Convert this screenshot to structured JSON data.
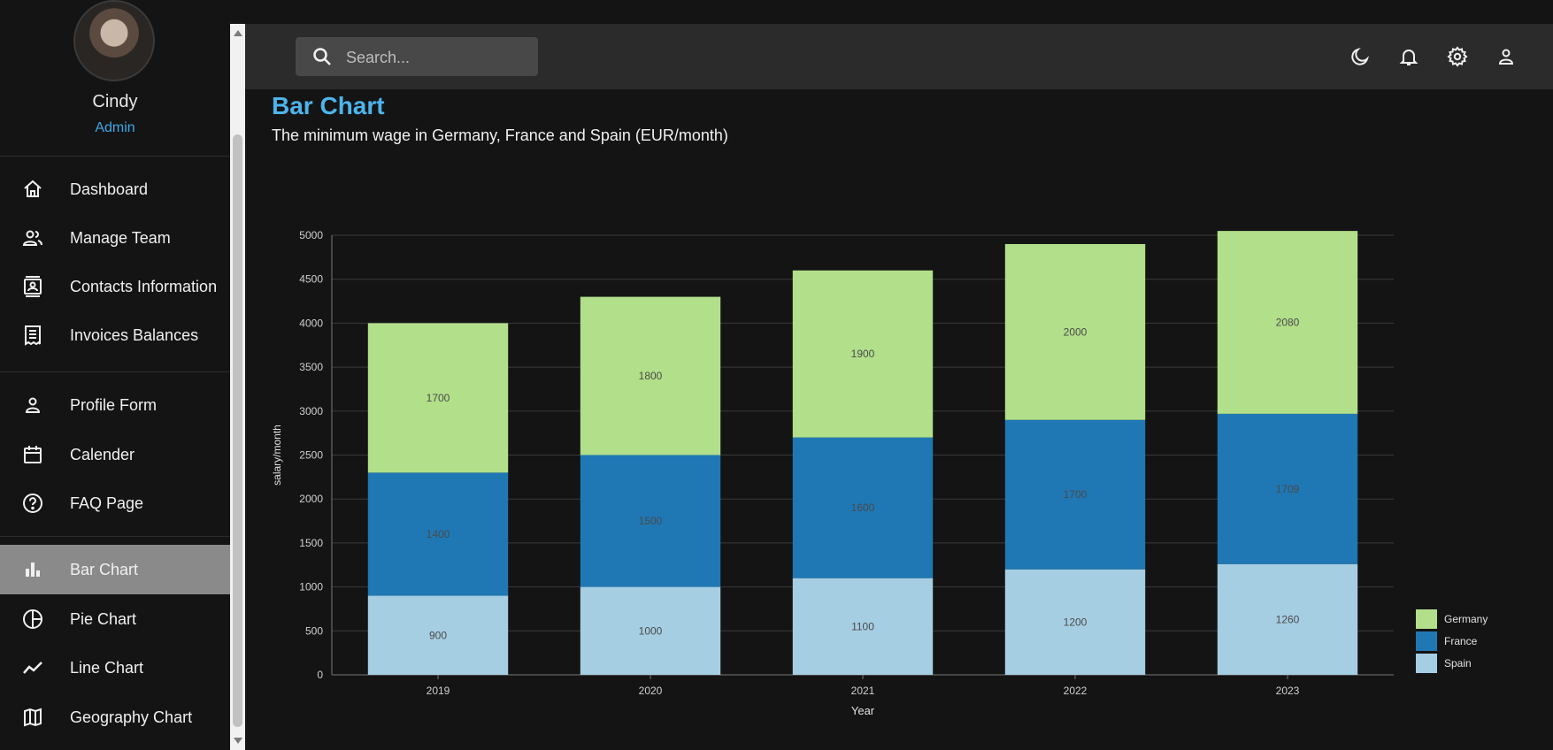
{
  "user": {
    "name": "Cindy",
    "role": "Admin"
  },
  "sidebar": {
    "items": [
      {
        "label": "Dashboard",
        "icon": "home-icon"
      },
      {
        "label": "Manage Team",
        "icon": "team-icon"
      },
      {
        "label": "Contacts Information",
        "icon": "contacts-icon"
      },
      {
        "label": "Invoices Balances",
        "icon": "receipt-icon"
      },
      {
        "label": "Profile Form",
        "icon": "person-icon"
      },
      {
        "label": "Calender",
        "icon": "calendar-icon"
      },
      {
        "label": "FAQ Page",
        "icon": "help-icon"
      },
      {
        "label": "Bar Chart",
        "icon": "bar-chart-icon",
        "active": true
      },
      {
        "label": "Pie Chart",
        "icon": "pie-chart-icon"
      },
      {
        "label": "Line Chart",
        "icon": "line-chart-icon"
      },
      {
        "label": "Geography Chart",
        "icon": "map-icon"
      }
    ]
  },
  "topbar": {
    "search_placeholder": "Search..."
  },
  "page": {
    "title": "Bar Chart",
    "subtitle": "The minimum wage in Germany, France and Spain (EUR/month)"
  },
  "colors": {
    "germany": "#b2df8a",
    "france": "#1f78b4",
    "spain": "#a6cee3",
    "accent": "#4db4ec"
  },
  "chart_data": {
    "type": "bar",
    "stacked": true,
    "categories": [
      "2019",
      "2020",
      "2021",
      "2022",
      "2023"
    ],
    "series": [
      {
        "name": "Spain",
        "color": "#a6cee3",
        "values": [
          900,
          1000,
          1100,
          1200,
          1260
        ]
      },
      {
        "name": "France",
        "color": "#1f78b4",
        "values": [
          1400,
          1500,
          1600,
          1700,
          1709
        ]
      },
      {
        "name": "Germany",
        "color": "#b2df8a",
        "values": [
          1700,
          1800,
          1900,
          2000,
          2080
        ]
      }
    ],
    "xlabel": "Year",
    "ylabel": "salary/month",
    "ylim": [
      0,
      5000
    ],
    "yticks": [
      0,
      500,
      1000,
      1500,
      2000,
      2500,
      3000,
      3500,
      4000,
      4500,
      5000
    ],
    "grid": true,
    "legend": "bottom-right"
  }
}
